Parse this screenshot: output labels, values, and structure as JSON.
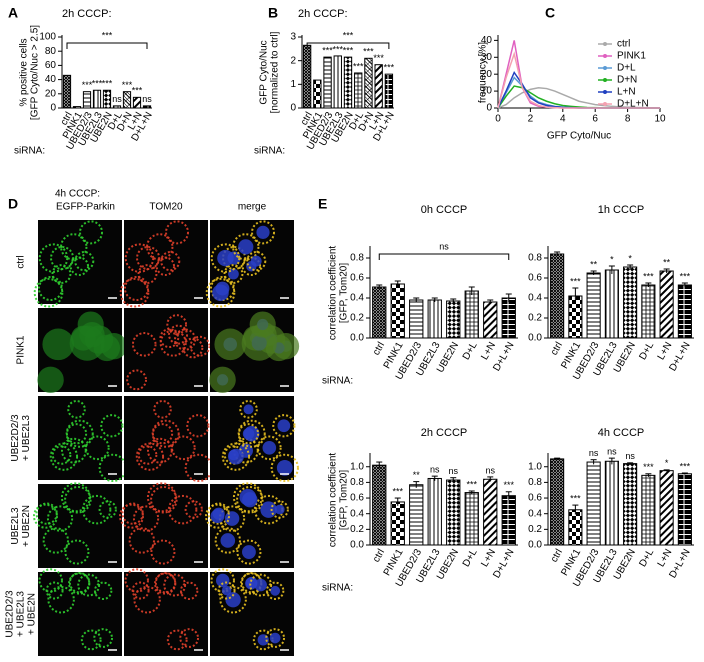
{
  "panels": [
    "A",
    "B",
    "C",
    "D",
    "E"
  ],
  "panel_d": {
    "title": "4h CCCP:",
    "columns": [
      "EGFP-Parkin",
      "TOM20",
      "merge"
    ],
    "rows": [
      [
        "ctrl"
      ],
      [
        "PINK1"
      ],
      [
        "UBE2D2/3",
        "+ UBE2L3"
      ],
      [
        "UBE2L3",
        "+ UBE2N"
      ],
      [
        "UBE2D2/3",
        "+ UBE2L3",
        "+ UBE2N"
      ]
    ]
  },
  "chart_data": [
    {
      "type": "bar",
      "title": "2h CCCP:",
      "ylabel": [
        "% positive cells",
        "[GFP Cyto/Nuc > 2.5]"
      ],
      "row_label": "siRNA:",
      "categories": [
        "ctrl",
        "PINK1",
        "UBED2/3",
        "UBE2L3",
        "UBE2N",
        "D+L",
        "D+N",
        "L+N",
        "D+L+N"
      ],
      "values": [
        46,
        2,
        23,
        25,
        25,
        3,
        23,
        15,
        3
      ],
      "significance": [
        null,
        null,
        "***",
        "***",
        "***",
        "ns",
        "***",
        "***",
        "ns"
      ],
      "bracket": "***",
      "ylim": [
        0,
        100
      ],
      "yticks": [
        0,
        20,
        40,
        60,
        80,
        100
      ]
    },
    {
      "type": "bar",
      "title": "2h CCCP:",
      "ylabel": [
        "GFP Cyto/Nuc",
        "[normalized to ctrl]"
      ],
      "row_label": "siRNA:",
      "categories": [
        "ctrl",
        "PINK1",
        "UBED2/3",
        "UBE2L3",
        "UBE2N",
        "D+L",
        "D+N",
        "L+N",
        "D+L+N"
      ],
      "values": [
        2.65,
        1.18,
        2.15,
        2.2,
        2.15,
        1.48,
        2.1,
        1.83,
        1.43
      ],
      "significance": [
        null,
        null,
        "***",
        "***",
        "***",
        "***",
        "***",
        "***",
        "***"
      ],
      "bracket": "***",
      "ylim": [
        0,
        3
      ],
      "yticks": [
        0,
        1,
        2,
        3
      ]
    },
    {
      "type": "line",
      "ylabel": [
        "frequency [%]"
      ],
      "xlabel": "GFP Cyto/Nuc",
      "x": [
        0,
        0.5,
        1,
        1.5,
        2,
        2.5,
        3,
        3.5,
        4,
        4.5,
        5,
        5.5,
        6,
        6.5,
        7,
        7.5,
        8,
        8.5,
        9,
        9.5,
        10
      ],
      "series": [
        {
          "name": "ctrl",
          "color": "#aaaaaa",
          "values": [
            0,
            2,
            6,
            9,
            11,
            12,
            11.5,
            10,
            8,
            6,
            4,
            3,
            2,
            1.5,
            1,
            0.7,
            0.5,
            0.3,
            0.2,
            0.1,
            0
          ]
        },
        {
          "name": "PINK1",
          "color": "#e060c0",
          "values": [
            0,
            20,
            40,
            12,
            3,
            1,
            0.5,
            0.2,
            0,
            0,
            0,
            0,
            0,
            0,
            0,
            0,
            0,
            0,
            0,
            0,
            0
          ]
        },
        {
          "name": "D+L",
          "color": "#5b9bd5",
          "values": [
            0,
            9,
            18,
            13,
            7,
            3.5,
            2,
            1,
            0.5,
            0.3,
            0.1,
            0,
            0,
            0,
            0,
            0,
            0,
            0,
            0,
            0,
            0
          ]
        },
        {
          "name": "D+N",
          "color": "#22b022",
          "values": [
            0,
            7,
            13,
            12,
            9,
            6,
            4,
            2.5,
            1.5,
            1,
            0.6,
            0.3,
            0.2,
            0.1,
            0,
            0,
            0,
            0,
            0,
            0,
            0
          ]
        },
        {
          "name": "L+N",
          "color": "#2040c0",
          "values": [
            0,
            10,
            21,
            14,
            6,
            3,
            1.5,
            0.8,
            0.4,
            0.2,
            0,
            0,
            0,
            0,
            0,
            0,
            0,
            0,
            0,
            0,
            0
          ]
        },
        {
          "name": "D+L+N",
          "color": "#f4a0b0",
          "values": [
            0,
            18,
            32,
            12,
            4,
            1.5,
            0.5,
            0.2,
            0,
            0,
            0,
            0,
            0,
            0,
            0,
            0,
            0,
            0,
            0,
            0,
            0
          ]
        }
      ],
      "xlim": [
        0,
        10
      ],
      "xticks": [
        0,
        2,
        4,
        6,
        8,
        10
      ],
      "ylim": [
        0,
        42
      ],
      "yticks": [
        0,
        10,
        20,
        30,
        40
      ]
    },
    {
      "type": "bar",
      "title": "0h CCCP",
      "ylabel": [
        "correlation coefficient",
        "[GFP, Tom20]"
      ],
      "row_label": "siRNA:",
      "categories": [
        "ctrl",
        "PINK1",
        "UBED2/3",
        "UBE2L3",
        "UBE2N",
        "D+L",
        "L+N",
        "D+L+N"
      ],
      "values": [
        0.51,
        0.54,
        0.38,
        0.38,
        0.37,
        0.47,
        0.36,
        0.4
      ],
      "errors": [
        0.02,
        0.03,
        0.02,
        0.02,
        0.02,
        0.04,
        0.02,
        0.04
      ],
      "bracket": "ns",
      "ylim": [
        0,
        0.9
      ],
      "yticks": [
        {
          "value": 0,
          "label": "0.0"
        },
        0.2,
        0.4,
        0.6,
        0.8
      ]
    },
    {
      "type": "bar",
      "title": "1h CCCP",
      "categories": [
        "ctrl",
        "PINK1",
        "UBED2/3",
        "UBE2L3",
        "UBE2N",
        "D+L",
        "L+N",
        "D+L+N"
      ],
      "values": [
        0.84,
        0.42,
        0.65,
        0.68,
        0.71,
        0.53,
        0.67,
        0.53
      ],
      "errors": [
        0.02,
        0.08,
        0.02,
        0.04,
        0.02,
        0.02,
        0.02,
        0.02
      ],
      "significance": [
        null,
        "***",
        "**",
        "*",
        "*",
        "***",
        "**",
        "***"
      ],
      "ylim": [
        0,
        0.9
      ],
      "yticks": [
        {
          "value": 0,
          "label": "0.0"
        },
        0.2,
        0.4,
        0.6,
        0.8
      ]
    },
    {
      "type": "bar",
      "title": "2h CCCP",
      "ylabel": [
        "correlation coefficient",
        "[GFP, Tom20]"
      ],
      "row_label": "siRNA:",
      "categories": [
        "ctrl",
        "PINK1",
        "UBED2/3",
        "UBE2L3",
        "UBE2N",
        "D+L",
        "L+N",
        "D+L+N"
      ],
      "values": [
        1.02,
        0.55,
        0.77,
        0.85,
        0.83,
        0.67,
        0.84,
        0.63
      ],
      "errors": [
        0.04,
        0.05,
        0.04,
        0.03,
        0.03,
        0.02,
        0.03,
        0.05
      ],
      "significance": [
        null,
        "***",
        "**",
        "ns",
        "ns",
        "***",
        "ns",
        "***"
      ],
      "ylim": [
        0,
        1.15
      ],
      "yticks": [
        {
          "value": 0,
          "label": "0.0"
        },
        0.2,
        0.4,
        0.6,
        0.8,
        {
          "value": 1,
          "label": "1.0"
        }
      ]
    },
    {
      "type": "bar",
      "title": "4h CCCP",
      "categories": [
        "ctrl",
        "PINK1",
        "UBED2/3",
        "UBE2L3",
        "UBE2N",
        "D+L",
        "L+N",
        "D+L+N"
      ],
      "values": [
        1.1,
        0.45,
        1.06,
        1.07,
        1.04,
        0.89,
        0.95,
        0.91
      ],
      "errors": [
        0.01,
        0.06,
        0.03,
        0.04,
        0.01,
        0.02,
        0.01,
        0.01
      ],
      "significance": [
        null,
        "***",
        "ns",
        "ns",
        "ns",
        "***",
        "*",
        "***"
      ],
      "ylim": [
        0,
        1.15
      ],
      "yticks": [
        {
          "value": 0,
          "label": "0.0"
        },
        0.2,
        0.4,
        0.6,
        0.8,
        {
          "value": 1,
          "label": "1.0"
        }
      ]
    }
  ]
}
